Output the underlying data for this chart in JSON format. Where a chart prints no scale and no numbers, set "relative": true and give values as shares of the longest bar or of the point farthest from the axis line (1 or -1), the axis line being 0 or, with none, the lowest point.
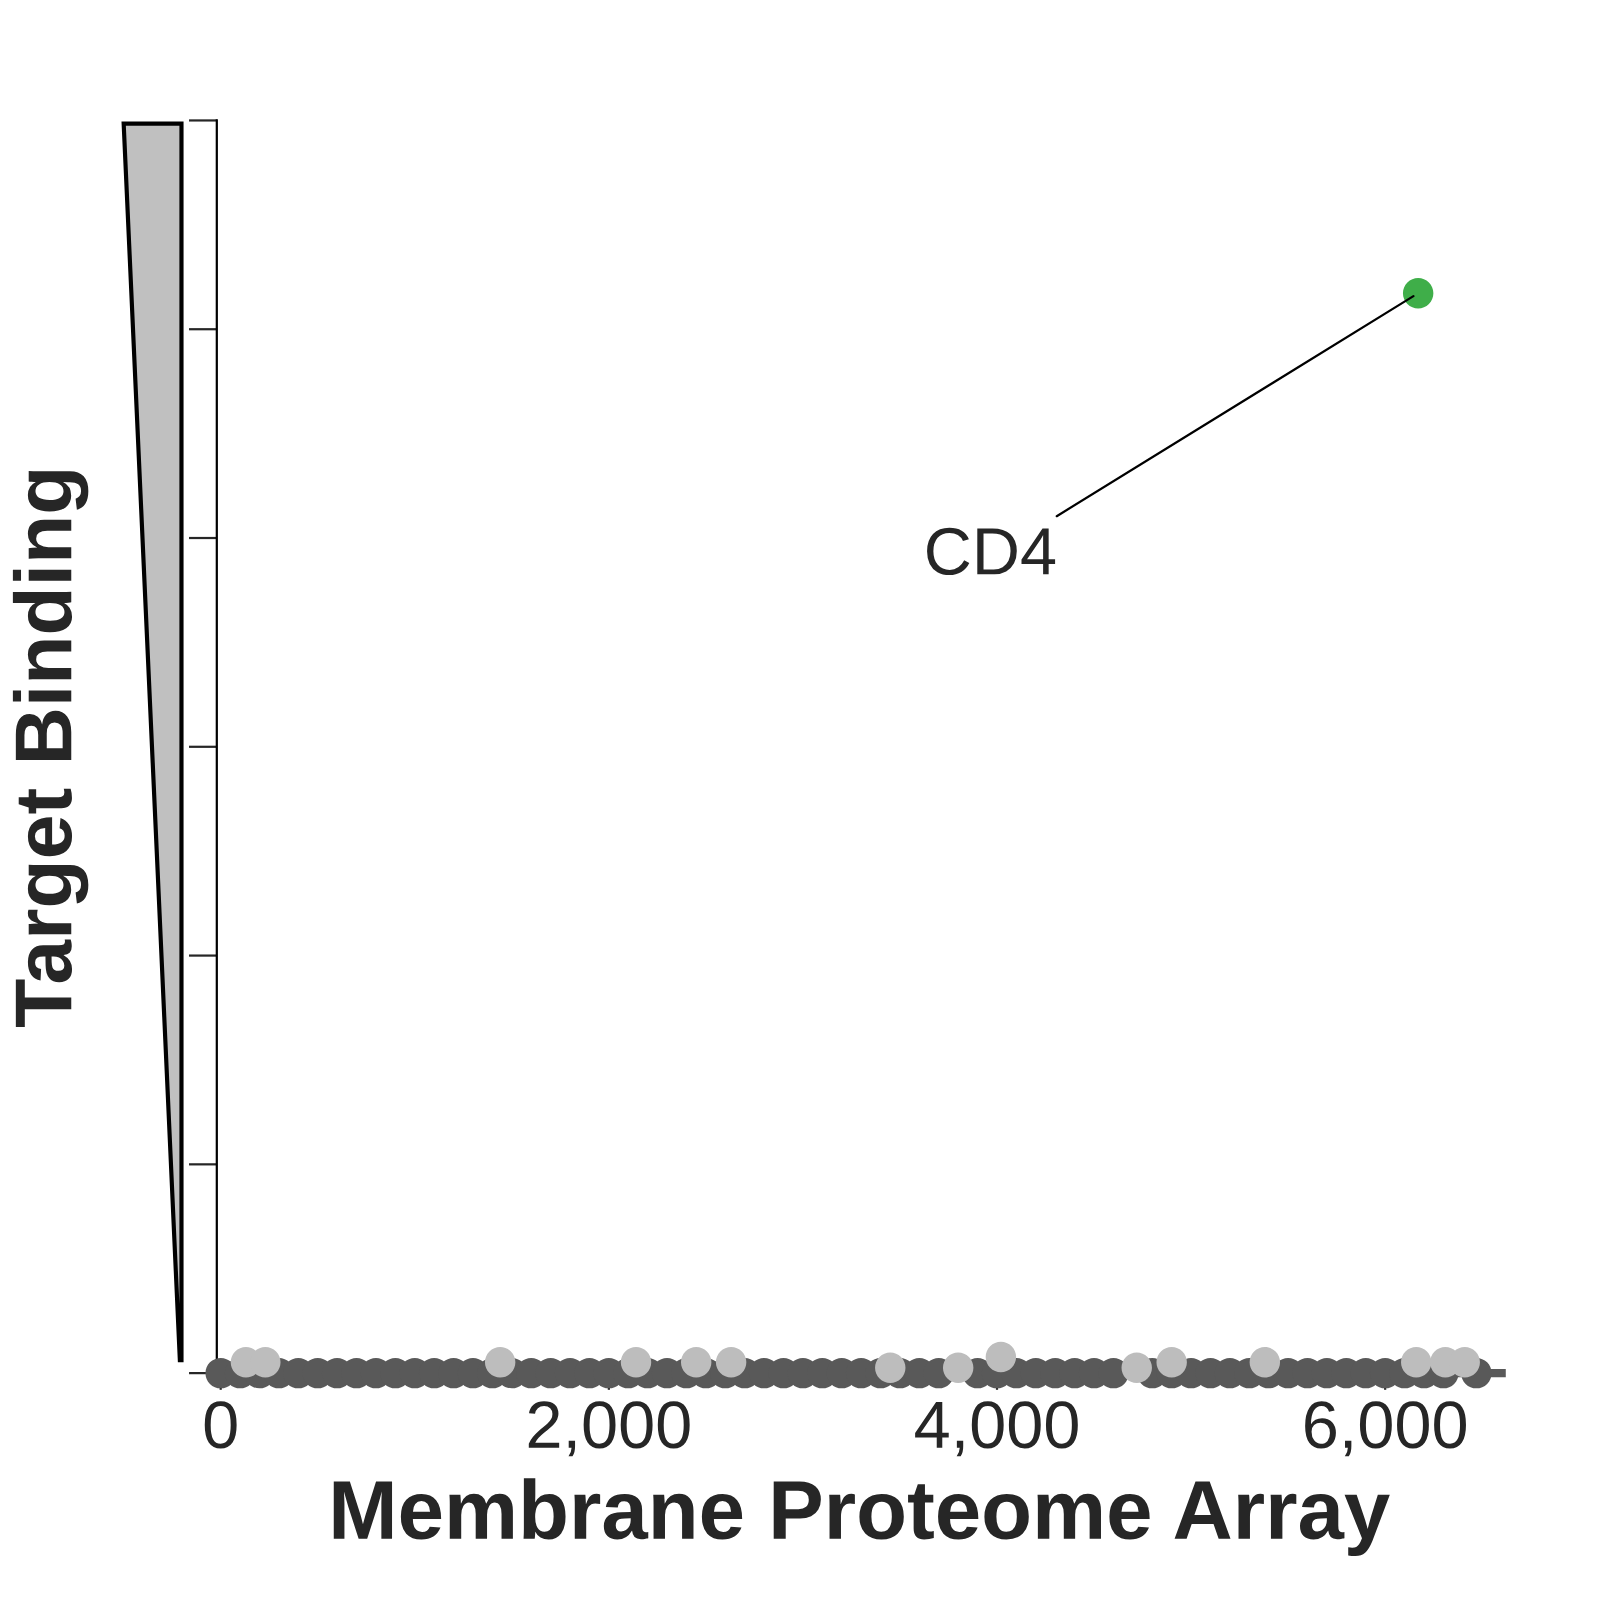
{
  "chart_data": {
    "type": "scatter",
    "relative": true,
    "xlabel": "Membrane Proteome Array",
    "ylabel": "Target Binding",
    "xlim": [
      -20,
      6600
    ],
    "xticks": [
      0,
      {
        "value": 2000,
        "label": "2,000"
      },
      {
        "value": 4000,
        "label": "4,000"
      },
      {
        "value": 6000,
        "label": "6,000"
      }
    ],
    "tick_labels": "x",
    "grid": false,
    "legend": false,
    "marker": "circle",
    "series": [
      {
        "color": "#595959",
        "x": [
          0,
          100,
          200,
          300,
          400,
          500,
          600,
          700,
          800,
          900,
          1000,
          1100,
          1200,
          1300,
          1400,
          1500,
          1600,
          1700,
          1800,
          1900,
          2000,
          2100,
          2200,
          2300,
          2400,
          2500,
          2600,
          2700,
          2800,
          2900,
          3000,
          3100,
          3200,
          3300,
          3400,
          3500,
          3600,
          3700,
          3900,
          4000,
          4100,
          4200,
          4300,
          4400,
          4500,
          4600,
          4800,
          4900,
          5000,
          5100,
          5200,
          5300,
          5400,
          5500,
          5600,
          5700,
          5800,
          5900,
          6000,
          6100,
          6200,
          6300,
          6470
        ],
        "values": [
          0,
          0,
          0,
          0,
          0,
          0,
          0,
          0,
          0,
          0,
          0,
          0,
          0,
          0,
          0,
          0,
          0,
          0,
          0,
          0,
          0,
          0,
          0,
          0,
          0,
          0,
          0,
          0,
          0,
          0,
          0,
          0,
          0,
          0,
          0,
          0,
          0,
          0,
          0,
          0,
          0,
          0,
          0,
          0,
          0,
          0,
          0,
          0,
          0,
          0,
          0,
          0,
          0,
          0,
          0,
          0,
          0,
          0,
          0,
          0,
          0,
          0,
          0
        ]
      },
      {
        "color": "#bdbdbd",
        "x": [
          130,
          230,
          1440,
          2140,
          2450,
          2630,
          3450,
          3800,
          4020,
          4720,
          4900,
          5380,
          6160,
          6310,
          6410
        ],
        "values": [
          0.01,
          0.01,
          0.01,
          0.01,
          0.01,
          0.01,
          0.005,
          0.005,
          0.015,
          0.005,
          0.01,
          0.01,
          0.01,
          0.01,
          0.01
        ]
      },
      {
        "color": "#3fae49",
        "x": [
          6170
        ],
        "values": [
          1
        ]
      }
    ],
    "annotations": [
      {
        "text": "CD4",
        "x": 6170,
        "y": 1
      }
    ]
  }
}
